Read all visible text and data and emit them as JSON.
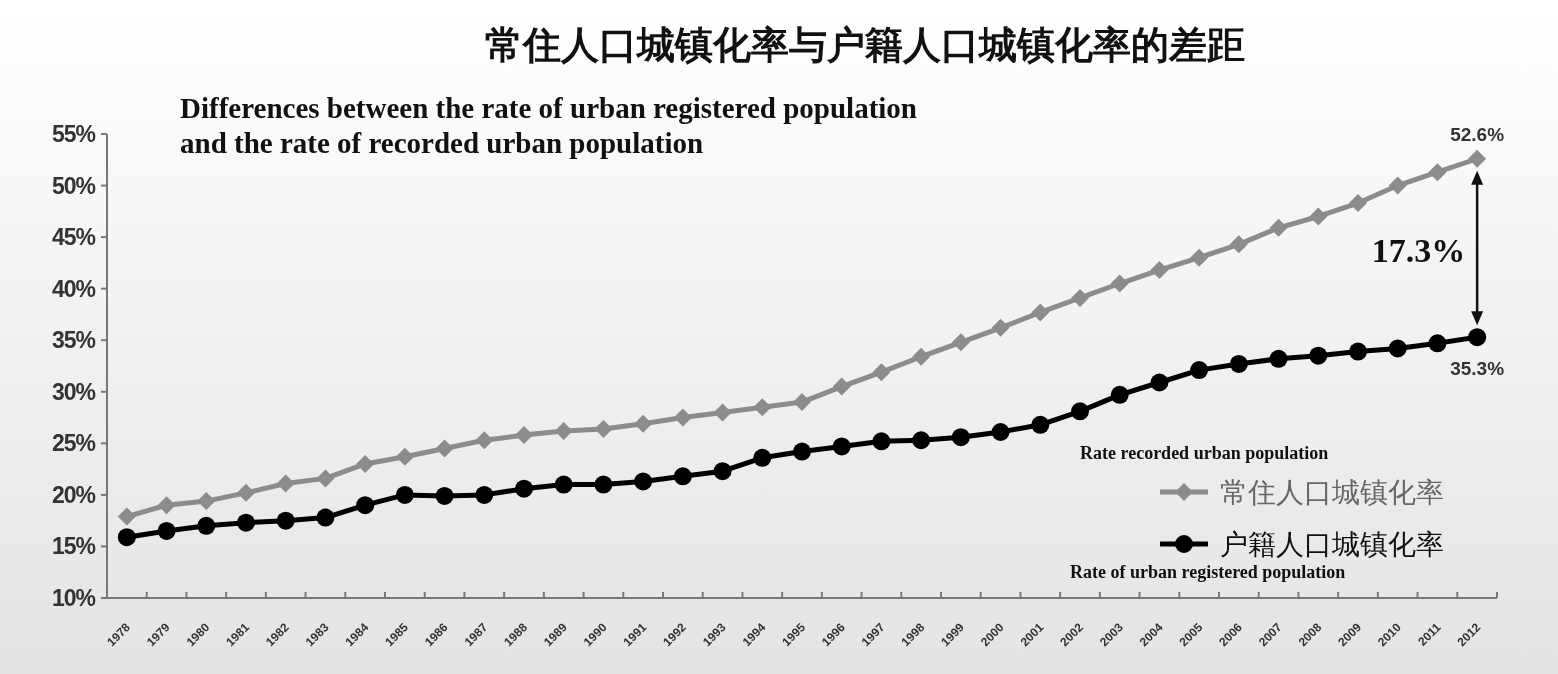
{
  "chart_data": {
    "type": "line",
    "title": "常住人口城镇化率与户籍人口城镇化率的差距",
    "subtitle": "Differences between the rate of urban registered population\nand the rate of recorded urban population",
    "categories": [
      "1978",
      "1979",
      "1980",
      "1981",
      "1982",
      "1983",
      "1984",
      "1985",
      "1986",
      "1987",
      "1988",
      "1989",
      "1990",
      "1991",
      "1992",
      "1993",
      "1994",
      "1995",
      "1996",
      "1997",
      "1998",
      "1999",
      "2000",
      "2001",
      "2002",
      "2003",
      "2004",
      "2005",
      "2006",
      "2007",
      "2008",
      "2009",
      "2010",
      "2011",
      "2012"
    ],
    "ylim": [
      10,
      55
    ],
    "yticks": [
      {
        "value": 10,
        "label": "10%"
      },
      {
        "value": 15,
        "label": "15%"
      },
      {
        "value": 20,
        "label": "20%"
      },
      {
        "value": 25,
        "label": "25%"
      },
      {
        "value": 30,
        "label": "30%"
      },
      {
        "value": 35,
        "label": "35%"
      },
      {
        "value": 40,
        "label": "40%"
      },
      {
        "value": 45,
        "label": "45%"
      },
      {
        "value": 50,
        "label": "50%"
      },
      {
        "value": 55,
        "label": "55%"
      }
    ],
    "grid": false,
    "legend": "bottom right",
    "series": [
      {
        "name": "常住人口城镇化率",
        "color": "#8c8c8c",
        "marker": "diamond",
        "values": [
          17.9,
          19.0,
          19.4,
          20.2,
          21.1,
          21.6,
          23.0,
          23.7,
          24.5,
          25.3,
          25.8,
          26.2,
          26.4,
          26.9,
          27.5,
          28.0,
          28.5,
          29.0,
          30.5,
          31.9,
          33.4,
          34.8,
          36.2,
          37.7,
          39.1,
          40.5,
          41.8,
          43.0,
          44.3,
          45.9,
          47.0,
          48.3,
          50.0,
          51.3,
          52.6
        ],
        "value_labels": [
          null,
          null,
          null,
          null,
          null,
          null,
          null,
          null,
          null,
          null,
          null,
          null,
          null,
          null,
          null,
          null,
          null,
          null,
          null,
          null,
          null,
          null,
          null,
          null,
          null,
          null,
          null,
          null,
          null,
          null,
          null,
          null,
          null,
          null,
          "52.6%"
        ]
      },
      {
        "name": "户籍人口城镇化率",
        "color": "#000000",
        "marker": "circle",
        "values": [
          15.9,
          16.5,
          17.0,
          17.3,
          17.5,
          17.8,
          19.0,
          20.0,
          19.9,
          20.0,
          20.6,
          21.0,
          21.0,
          21.3,
          21.8,
          22.3,
          23.6,
          24.2,
          24.7,
          25.2,
          25.3,
          25.6,
          26.1,
          26.8,
          28.1,
          29.7,
          30.9,
          32.1,
          32.7,
          33.2,
          33.5,
          33.9,
          34.2,
          34.7,
          35.3
        ],
        "value_labels": [
          null,
          null,
          null,
          null,
          null,
          null,
          null,
          null,
          null,
          null,
          null,
          null,
          null,
          null,
          null,
          null,
          null,
          null,
          null,
          null,
          null,
          null,
          null,
          null,
          null,
          null,
          null,
          null,
          null,
          null,
          null,
          null,
          null,
          null,
          "35.3%"
        ]
      }
    ],
    "annotations": [
      "17.3%",
      "Rate recorded urban population",
      "Rate of urban registered population"
    ]
  }
}
